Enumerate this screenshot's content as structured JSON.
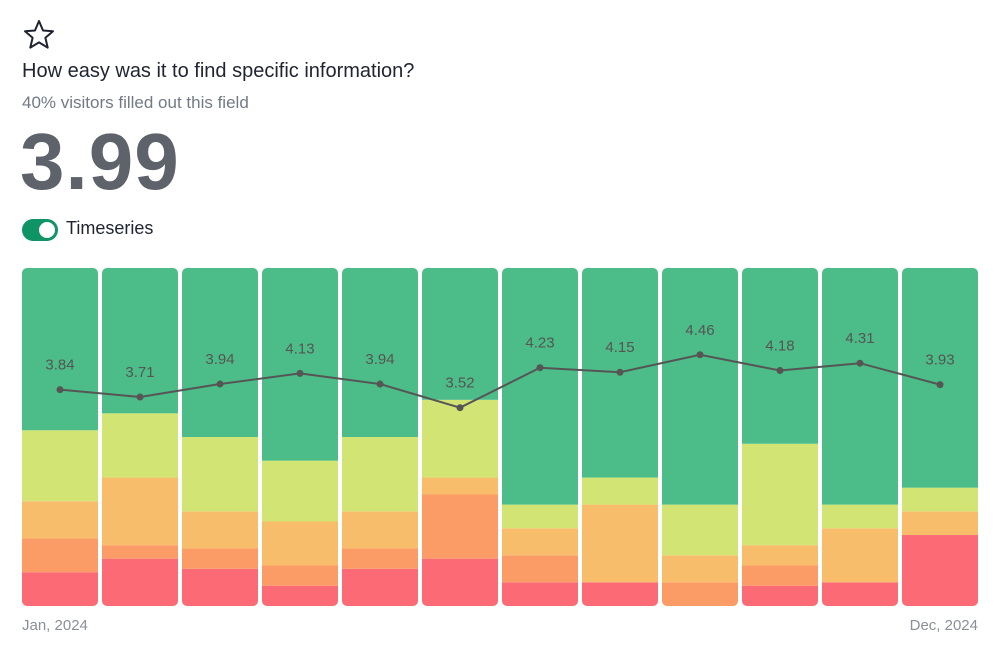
{
  "header": {
    "title": "How easy was it to find specific information?",
    "subtitle": "40% visitors filled out this field",
    "score": 3.99,
    "toggle": "Timeseries"
  },
  "chart_data": {
    "type": "bar",
    "stacked": true,
    "categories": [
      "Jan, 2024",
      null,
      null,
      null,
      null,
      null,
      null,
      null,
      null,
      null,
      null,
      "Dec, 2024"
    ],
    "ylim": [
      0,
      100
    ],
    "y2lim": [
      0,
      6
    ],
    "series": [
      {
        "color": "#fc6b75",
        "values": [
          10,
          14,
          11,
          6,
          11,
          14,
          7,
          7,
          0,
          6,
          7,
          21
        ]
      },
      {
        "color": "#fb9c67",
        "values": [
          10,
          4,
          6,
          6,
          6,
          19,
          8,
          0,
          7,
          6,
          0,
          0
        ]
      },
      {
        "color": "#f8bd6b",
        "values": [
          11,
          20,
          11,
          13,
          11,
          5,
          8,
          23,
          8,
          6,
          16,
          7
        ]
      },
      {
        "color": "#d2e574",
        "values": [
          21,
          19,
          22,
          18,
          22,
          23,
          7,
          8,
          15,
          30,
          7,
          7
        ]
      },
      {
        "color": "#4cbd88",
        "values": [
          48,
          43,
          50,
          57,
          50,
          39,
          70,
          62,
          70,
          52,
          70,
          65
        ]
      },
      {
        "type": "line",
        "axis": "y2",
        "color": "#555555",
        "values": [
          3.84,
          3.71,
          3.94,
          4.13,
          3.94,
          3.52,
          4.23,
          4.15,
          4.46,
          4.18,
          4.31,
          3.93
        ]
      }
    ]
  }
}
